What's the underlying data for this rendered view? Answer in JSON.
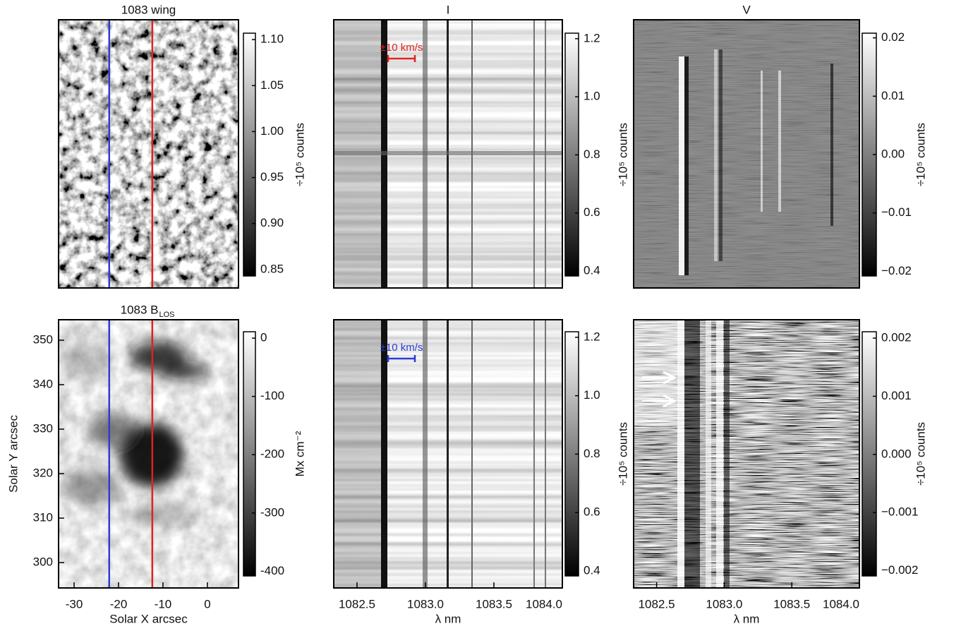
{
  "chart_data": [
    {
      "type": "image",
      "title": "1083 wing",
      "xlim": [
        -33.5,
        7
      ],
      "slit_lines": [
        {
          "x": -22.1,
          "color": "#2b3bd6"
        },
        {
          "x": -12.4,
          "color": "#e0231f"
        }
      ],
      "colorbar": {
        "label": "÷10⁵ counts",
        "ylim": [
          0.843,
          1.107
        ],
        "yticks": [
          {
            "value": 0.85,
            "label": "0.85"
          },
          {
            "value": 0.9,
            "label": "0.90"
          },
          {
            "value": 0.95,
            "label": "0.95"
          },
          {
            "value": 1,
            "label": "1.00"
          },
          {
            "value": 1.05,
            "label": "1.05"
          },
          {
            "value": 1.1,
            "label": "1.10"
          }
        ]
      }
    },
    {
      "type": "image",
      "title": "I",
      "annotation": {
        "text": "±10 km/s",
        "color": "#e0231f"
      },
      "colorbar": {
        "label": "÷10⁵ counts",
        "ylim": [
          0.383,
          1.219
        ],
        "yticks": [
          0.4,
          0.6,
          0.8,
          {
            "value": 1,
            "label": "1.0"
          },
          1.2
        ]
      }
    },
    {
      "type": "image",
      "title": "V",
      "colorbar": {
        "label": "÷10⁵ counts",
        "ylim": [
          -0.0208,
          0.0208
        ],
        "yticks": [
          {
            "value": -0.02,
            "label": "−0.02"
          },
          {
            "value": -0.01,
            "label": "−0.01"
          },
          {
            "value": 0,
            "label": "0.00"
          },
          0.01,
          0.02
        ]
      }
    },
    {
      "type": "image",
      "title": "1083 B",
      "title_subscript": "LOS",
      "xlim": [
        -33.5,
        7
      ],
      "xticks": [
        -30,
        -20,
        -10,
        0
      ],
      "xlabel": "Solar X arcsec",
      "ylim": [
        294.3,
        354.6
      ],
      "yticks": [
        300,
        310,
        320,
        330,
        340,
        350
      ],
      "ylabel": "Solar Y arcsec",
      "slit_lines": [
        {
          "x": -22.1,
          "color": "#2b3bd6"
        },
        {
          "x": -12.4,
          "color": "#e0231f"
        }
      ],
      "colorbar": {
        "label": "Mx cm⁻²",
        "ylim": [
          -408,
          11
        ],
        "yticks": [
          -400,
          -300,
          -200,
          -100,
          0
        ]
      }
    },
    {
      "type": "image",
      "xlim": [
        1082.33,
        1084.0
      ],
      "xticks": [
        1082.5,
        {
          "value": 1083,
          "label": "1083.0"
        },
        1083.5,
        {
          "value": 1084,
          "label": "1084.0"
        }
      ],
      "xlabel": "λ nm",
      "annotation": {
        "text": "±10 km/s",
        "color": "#2b3bd6"
      },
      "colorbar": {
        "label": "÷10⁵ counts",
        "ylim": [
          0.383,
          1.219
        ],
        "yticks": [
          0.4,
          0.6,
          0.8,
          {
            "value": 1,
            "label": "1.0"
          },
          1.2
        ]
      }
    },
    {
      "type": "image",
      "xlim": [
        1082.33,
        1084.0
      ],
      "xticks": [
        1082.5,
        {
          "value": 1083,
          "label": "1083.0"
        },
        1083.5,
        {
          "value": 1084,
          "label": "1084.0"
        }
      ],
      "xlabel": "λ nm",
      "colorbar": {
        "label": "÷10⁵ counts",
        "ylim": [
          -0.00209,
          0.00211
        ],
        "yticks": [
          {
            "value": -0.002,
            "label": "−0.002"
          },
          {
            "value": -0.001,
            "label": "−0.001"
          },
          {
            "value": 0,
            "label": "0.000"
          },
          0.001,
          0.002
        ]
      }
    }
  ]
}
